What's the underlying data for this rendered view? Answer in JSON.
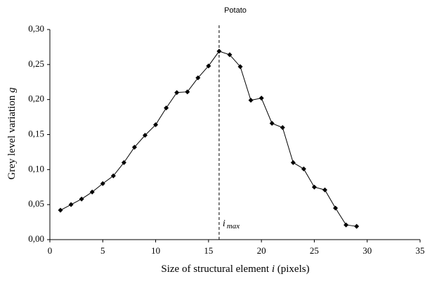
{
  "chart_data": {
    "type": "line",
    "title": "Potato",
    "x_label": [
      "Size of structural element ",
      "i",
      " (pixels)"
    ],
    "y_label": [
      "Grey level variation  ",
      "g"
    ],
    "annotation": [
      "i",
      "max"
    ],
    "vline": 16,
    "x": [
      1,
      2,
      3,
      4,
      5,
      6,
      7,
      8,
      9,
      10,
      11,
      12,
      13,
      14,
      15,
      16,
      17,
      18,
      19,
      20,
      21,
      22,
      23,
      24,
      25,
      26,
      27,
      28,
      29
    ],
    "series": [
      {
        "color": "#000000",
        "values": [
          0.042,
          0.05,
          0.058,
          0.068,
          0.08,
          0.091,
          0.11,
          0.132,
          0.149,
          0.164,
          0.188,
          0.21,
          0.211,
          0.231,
          0.248,
          0.269,
          0.264,
          0.247,
          0.199,
          0.202,
          0.166,
          0.16,
          0.11,
          0.101,
          0.075,
          0.071,
          0.045,
          0.021,
          0.019
        ]
      }
    ],
    "xlim": [
      0,
      35
    ],
    "xticks": [
      0,
      5,
      10,
      15,
      20,
      25,
      30,
      35
    ],
    "ylim": [
      0,
      0.3
    ],
    "yticks": [
      {
        "value": 0,
        "label": "0,00"
      },
      {
        "value": 0.05,
        "label": "0,05"
      },
      {
        "value": 0.1,
        "label": "0,10"
      },
      {
        "value": 0.15,
        "label": "0,15"
      },
      {
        "value": 0.2,
        "label": "0,20"
      },
      {
        "value": 0.25,
        "label": "0,25"
      },
      {
        "value": 0.3,
        "label": "0,30"
      }
    ],
    "grid": false
  }
}
